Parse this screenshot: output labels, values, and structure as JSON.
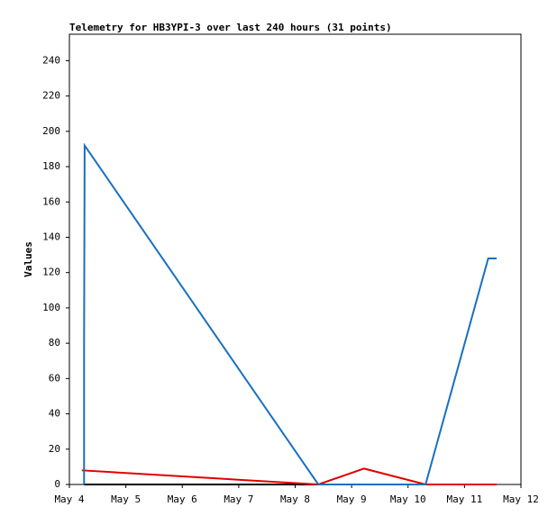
{
  "chart_data": {
    "type": "line",
    "title": "Telemetry for HB3YPI-3 over last 240 hours (31 points)",
    "y_label": "Values",
    "xlim": [
      4,
      12
    ],
    "xticks": [
      {
        "value": 4,
        "label": "May 4"
      },
      {
        "value": 5,
        "label": "May 5"
      },
      {
        "value": 6,
        "label": "May 6"
      },
      {
        "value": 7,
        "label": "May 7"
      },
      {
        "value": 8,
        "label": "May 8"
      },
      {
        "value": 9,
        "label": "May 9"
      },
      {
        "value": 10,
        "label": "May 10"
      },
      {
        "value": 11,
        "label": "May 11"
      },
      {
        "value": 12,
        "label": "May 12"
      }
    ],
    "ylim": [
      0,
      255
    ],
    "yticks": [
      0,
      20,
      40,
      60,
      80,
      100,
      120,
      140,
      160,
      180,
      200,
      220,
      240
    ],
    "grid": false,
    "series": [
      {
        "color": "#000000",
        "x": [
          4.26,
          11.57
        ],
        "values": [
          0,
          0
        ]
      },
      {
        "color": "#e00000",
        "x": [
          4.22,
          8.41,
          9.22,
          10.31,
          11.57
        ],
        "values": [
          8,
          0,
          9,
          0,
          0
        ]
      },
      {
        "color": "#1a6fbf",
        "x": [
          4.26,
          4.26,
          4.27,
          8.41,
          10.31,
          11.42,
          11.57
        ],
        "values": [
          0,
          80,
          192,
          0,
          0,
          128,
          128
        ]
      }
    ]
  }
}
